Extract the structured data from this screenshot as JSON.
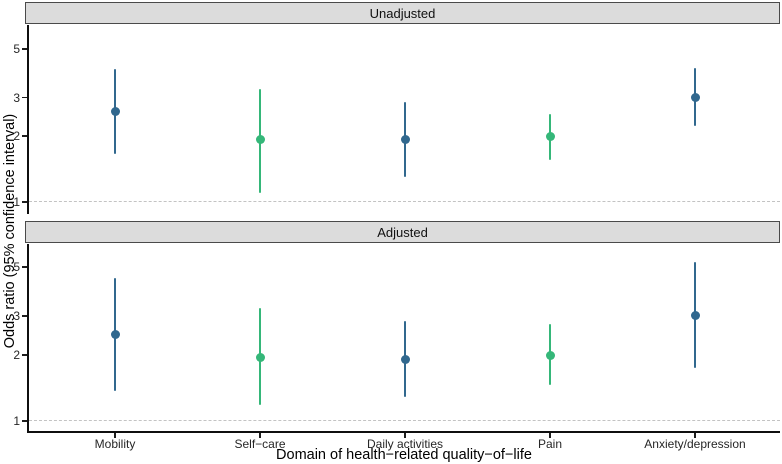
{
  "chart_data": {
    "type": "scatter",
    "subtype": "forest-plot-pointrange",
    "title": "",
    "xlabel": "Domain of health−related quality−of−life",
    "ylabel": "Odds ratio (95% confidence interval)",
    "yscale": "log",
    "yticks": [
      1,
      2,
      3,
      5
    ],
    "ylim": [
      0.89,
      6.4
    ],
    "reference_line": 1,
    "grid": "off",
    "legend_position": "none",
    "categories": [
      "Mobility",
      "Self−care",
      "Daily activities",
      "Pain",
      "Anxiety/depression"
    ],
    "point_colors": {
      "blue": "#31688E",
      "green": "#35B779"
    },
    "facets": [
      {
        "label": "Unadjusted",
        "points": [
          {
            "category": "Mobility",
            "or": 2.58,
            "ci_low": 1.66,
            "ci_high": 4.05,
            "color": "blue"
          },
          {
            "category": "Self−care",
            "or": 1.92,
            "ci_low": 1.1,
            "ci_high": 3.28,
            "color": "green"
          },
          {
            "category": "Daily activities",
            "or": 1.92,
            "ci_low": 1.3,
            "ci_high": 2.85,
            "color": "blue"
          },
          {
            "category": "Pain",
            "or": 2.0,
            "ci_low": 1.55,
            "ci_high": 2.51,
            "color": "green"
          },
          {
            "category": "Anxiety/depression",
            "or": 3.01,
            "ci_low": 2.22,
            "ci_high": 4.1,
            "color": "blue"
          }
        ]
      },
      {
        "label": "Adjusted",
        "points": [
          {
            "category": "Mobility",
            "or": 2.48,
            "ci_low": 1.37,
            "ci_high": 4.47,
            "color": "blue"
          },
          {
            "category": "Self−care",
            "or": 1.95,
            "ci_low": 1.18,
            "ci_high": 3.27,
            "color": "green"
          },
          {
            "category": "Daily activities",
            "or": 1.91,
            "ci_low": 1.28,
            "ci_high": 2.85,
            "color": "blue"
          },
          {
            "category": "Pain",
            "or": 1.98,
            "ci_low": 1.45,
            "ci_high": 2.76,
            "color": "green"
          },
          {
            "category": "Anxiety/depression",
            "or": 3.03,
            "ci_low": 1.74,
            "ci_high": 5.27,
            "color": "blue"
          }
        ]
      }
    ],
    "styles": {
      "strip_fill": "#dcdcdc",
      "strip_border": "#4a4a4a",
      "axis_line_color": "#0f0f0f",
      "reference_line_color": "#c3c3c3",
      "tick_text_color": "#262626"
    }
  }
}
